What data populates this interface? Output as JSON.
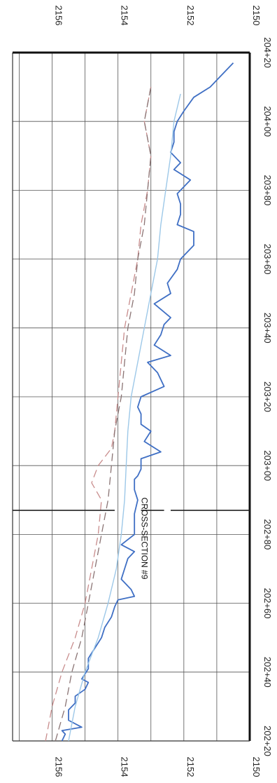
{
  "chart_data": {
    "type": "line",
    "title": "",
    "xlabel": "",
    "ylabel": "",
    "orientation": "rotated-90-clockwise",
    "xlim": [
      202.2,
      204.2
    ],
    "ylim": [
      2150,
      2157.2
    ],
    "x_ticks": [
      {
        "value": 202.2,
        "label": "202+20"
      },
      {
        "value": 202.4,
        "label": "202+40"
      },
      {
        "value": 202.6,
        "label": "202+60"
      },
      {
        "value": 202.8,
        "label": "202+80"
      },
      {
        "value": 203.0,
        "label": "203+00"
      },
      {
        "value": 203.2,
        "label": "203+20"
      },
      {
        "value": 203.4,
        "label": "203+40"
      },
      {
        "value": 203.6,
        "label": "203+60"
      },
      {
        "value": 203.8,
        "label": "203+80"
      },
      {
        "value": 204.0,
        "label": "204+00"
      },
      {
        "value": 204.2,
        "label": "204+20"
      }
    ],
    "y_ticks": [
      2150,
      2152,
      2154,
      2156
    ],
    "y_tick_labels": [
      "2150",
      "2152",
      "2154",
      "2156"
    ],
    "grid": true,
    "annotations": [
      {
        "text": "CROSS-SECTION #9",
        "x": 202.87
      }
    ],
    "series": [
      {
        "style": "solid",
        "color": "#3f6fc4",
        "x": [
          202.2,
          202.22,
          202.23,
          202.24,
          202.26,
          202.29,
          202.31,
          202.33,
          202.35,
          202.37,
          202.38,
          202.41,
          202.44,
          202.47,
          202.5,
          202.53,
          202.56,
          202.59,
          202.61,
          202.62,
          202.64,
          202.67,
          202.7,
          202.73,
          202.75,
          202.77,
          202.8,
          202.83,
          202.86,
          202.9,
          202.93,
          202.96,
          202.97,
          202.99,
          203.02,
          203.04,
          203.07,
          203.1,
          203.12,
          203.15,
          203.17,
          203.2,
          203.23,
          203.27,
          203.3,
          203.32,
          203.35,
          203.38,
          203.41,
          203.43,
          203.47,
          203.5,
          203.53,
          203.57,
          203.6,
          203.64,
          203.68,
          203.7,
          203.73,
          203.76,
          203.79,
          203.83,
          203.86,
          203.88,
          203.91,
          203.94,
          203.97,
          204.0,
          204.03,
          204.07,
          204.1,
          204.13,
          204.17
        ],
        "y": [
          2155.7,
          2155.6,
          2155.7,
          2155.1,
          2155.5,
          2155.5,
          2155.3,
          2155.3,
          2155.0,
          2154.9,
          2155.1,
          2154.9,
          2154.9,
          2154.7,
          2154.5,
          2154.4,
          2154.2,
          2154.1,
          2154.0,
          2153.5,
          2153.6,
          2153.9,
          2153.8,
          2153.7,
          2153.5,
          2153.9,
          2153.5,
          2153.5,
          2153.5,
          2153.4,
          2153.5,
          2153.5,
          2153.4,
          2153.3,
          2153.3,
          2152.7,
          2153.2,
          2153.0,
          2153.3,
          2153.3,
          2153.4,
          2153.3,
          2152.6,
          2152.8,
          2153.1,
          2152.4,
          2152.9,
          2152.7,
          2152.6,
          2152.4,
          2152.9,
          2152.4,
          2152.5,
          2152.2,
          2152.1,
          2151.7,
          2151.7,
          2152.2,
          2152.1,
          2152.1,
          2152.2,
          2151.8,
          2152.3,
          2152.1,
          2152.4,
          2152.3,
          2152.3,
          2152.2,
          2152.0,
          2151.7,
          2151.2,
          2150.9,
          2150.5
        ]
      },
      {
        "style": "solid-thin",
        "color": "#9dc8e8",
        "x": [
          202.2,
          202.3,
          202.4,
          202.5,
          202.6,
          202.7,
          202.8,
          202.9,
          203.0,
          203.1,
          203.2,
          203.3,
          203.4,
          203.5,
          203.6,
          203.7,
          203.8,
          203.9,
          204.0,
          204.08
        ],
        "y": [
          2155.5,
          2155.3,
          2155.0,
          2154.6,
          2154.3,
          2154.05,
          2153.9,
          2153.8,
          2153.75,
          2153.7,
          2153.6,
          2153.4,
          2153.2,
          2153.0,
          2152.8,
          2152.7,
          2152.55,
          2152.4,
          2152.3,
          2152.1
        ]
      },
      {
        "style": "dashed",
        "color": "#c88c8c",
        "x": [
          202.2,
          202.3,
          202.4,
          202.5,
          202.6,
          202.7,
          202.8,
          202.9,
          202.95,
          203.0,
          203.05,
          203.1,
          203.2,
          203.3,
          203.4,
          203.5,
          203.6,
          203.7,
          203.8,
          203.9,
          204.0,
          204.1
        ],
        "y": [
          2156.2,
          2156.0,
          2155.7,
          2155.3,
          2155.0,
          2154.8,
          2154.6,
          2154.5,
          2154.8,
          2154.6,
          2154.2,
          2154.1,
          2154.0,
          2153.9,
          2153.8,
          2153.6,
          2153.4,
          2153.3,
          2153.1,
          2153.0,
          2153.2,
          2153.0
        ]
      },
      {
        "style": "dashed",
        "color": "#8a7474",
        "x": [
          202.2,
          202.3,
          202.4,
          202.5,
          202.6,
          202.7,
          202.8,
          202.9,
          203.0,
          203.1,
          203.2,
          203.3,
          203.4,
          203.5,
          203.6,
          203.7,
          203.8,
          203.9,
          204.0,
          204.1
        ],
        "y": [
          2155.9,
          2155.6,
          2155.4,
          2155.1,
          2154.9,
          2154.7,
          2154.5,
          2154.3,
          2154.2,
          2154.1,
          2153.9,
          2153.8,
          2153.7,
          2153.5,
          2153.4,
          2153.2,
          2153.1,
          2153.0,
          2153.2,
          2153.0
        ]
      }
    ]
  }
}
